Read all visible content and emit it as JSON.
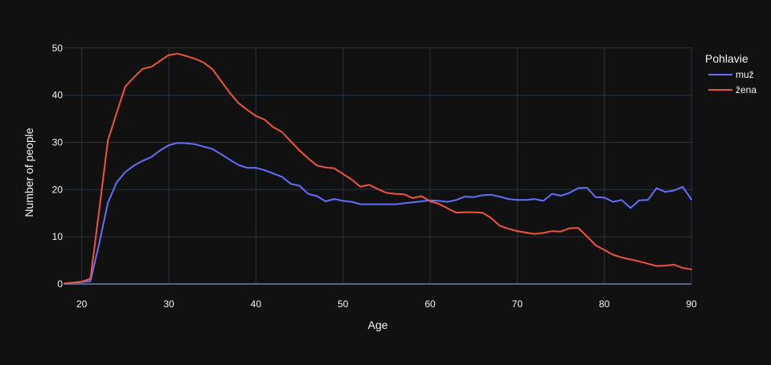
{
  "chart_data": {
    "type": "line",
    "xlabel": "Age",
    "ylabel": "Number of people",
    "xlim": [
      18,
      90
    ],
    "ylim": [
      0,
      52
    ],
    "xticks": [
      20,
      30,
      40,
      50,
      60,
      70,
      80,
      90
    ],
    "yticks": [
      0,
      10,
      20,
      30,
      40,
      50
    ],
    "grid": true,
    "legend": {
      "title": "Pohlavie",
      "placement": "top-right"
    },
    "colors": {
      "background": "#111111",
      "grid": "#283442",
      "text": "#f2f5fa"
    },
    "series": [
      {
        "name": "muž",
        "color": "#636efa",
        "x": [
          18,
          19,
          20,
          21,
          22,
          23,
          24,
          25,
          26,
          27,
          28,
          29,
          30,
          31,
          32,
          33,
          34,
          35,
          36,
          37,
          38,
          39,
          40,
          41,
          42,
          43,
          44,
          45,
          46,
          47,
          48,
          49,
          50,
          51,
          52,
          53,
          54,
          55,
          56,
          57,
          58,
          59,
          60,
          61,
          62,
          63,
          64,
          65,
          66,
          67,
          68,
          69,
          70,
          71,
          72,
          73,
          74,
          75,
          76,
          77,
          78,
          79,
          80,
          81,
          82,
          83,
          84,
          85,
          86,
          87,
          88,
          89,
          90
        ],
        "values": [
          0.1,
          0.2,
          0.4,
          0.6,
          8.5,
          17.2,
          21.5,
          23.7,
          25.1,
          26.1,
          26.9,
          28.3,
          29.4,
          29.9,
          29.8,
          29.6,
          29.1,
          28.6,
          27.5,
          26.3,
          25.2,
          24.6,
          24.6,
          24.1,
          23.4,
          22.7,
          21.2,
          20.8,
          19.1,
          18.6,
          17.5,
          18.0,
          17.6,
          17.4,
          16.9,
          16.9,
          16.9,
          16.9,
          16.9,
          17.1,
          17.3,
          17.5,
          17.7,
          17.6,
          17.4,
          17.8,
          18.5,
          18.4,
          18.8,
          18.9,
          18.5,
          18.0,
          17.8,
          17.8,
          18.0,
          17.6,
          19.1,
          18.7,
          19.3,
          20.3,
          20.4,
          18.4,
          18.3,
          17.4,
          17.8,
          16.1,
          17.7,
          17.8,
          20.3,
          19.5,
          19.8,
          20.6,
          17.9
        ]
      },
      {
        "name": "žena",
        "color": "#ef553b",
        "x": [
          18,
          19,
          20,
          21,
          22,
          23,
          24,
          25,
          26,
          27,
          28,
          29,
          30,
          31,
          32,
          33,
          34,
          35,
          36,
          37,
          38,
          39,
          40,
          41,
          42,
          43,
          44,
          45,
          46,
          47,
          48,
          49,
          50,
          51,
          52,
          53,
          54,
          55,
          56,
          57,
          58,
          59,
          60,
          61,
          62,
          63,
          64,
          65,
          66,
          67,
          68,
          69,
          70,
          71,
          72,
          73,
          74,
          75,
          76,
          77,
          78,
          79,
          80,
          81,
          82,
          83,
          84,
          85,
          86,
          87,
          88,
          89,
          90
        ],
        "values": [
          0.1,
          0.3,
          0.5,
          1.1,
          15.5,
          30.4,
          36.2,
          41.8,
          43.8,
          45.6,
          46.0,
          47.3,
          48.5,
          48.8,
          48.3,
          47.7,
          46.9,
          45.5,
          43.0,
          40.5,
          38.3,
          36.9,
          35.6,
          34.8,
          33.2,
          32.2,
          30.2,
          28.3,
          26.6,
          25.1,
          24.7,
          24.5,
          23.3,
          22.1,
          20.6,
          21.0,
          20.1,
          19.3,
          19.1,
          19.0,
          18.2,
          18.6,
          17.5,
          17.0,
          16.0,
          15.1,
          15.2,
          15.2,
          15.1,
          14.0,
          12.3,
          11.7,
          11.2,
          10.9,
          10.6,
          10.8,
          11.2,
          11.1,
          11.8,
          11.9,
          10.1,
          8.2,
          7.2,
          6.2,
          5.6,
          5.2,
          4.8,
          4.3,
          3.8,
          3.9,
          4.1,
          3.4,
          3.1
        ]
      }
    ]
  }
}
